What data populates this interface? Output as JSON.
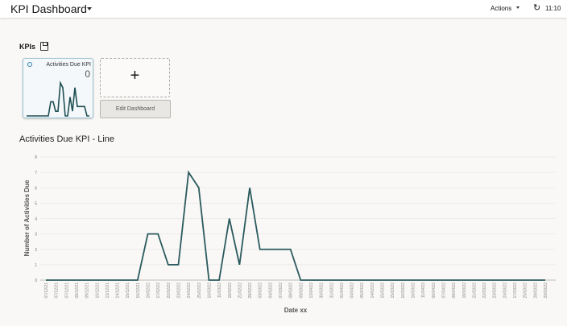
{
  "header": {
    "title": "KPI Dashboard",
    "actions_label": "Actions",
    "refresh_icon": "refresh-icon",
    "time": "11:10"
  },
  "kpis": {
    "heading": "KPIs",
    "save_icon": "save-icon",
    "card": {
      "title": "Activities Due KPI",
      "value": "0"
    },
    "add_label": "+",
    "edit_label": "Edit Dashboard"
  },
  "chart_title": "Activities Due KPI - Line",
  "chart_data": {
    "type": "line",
    "title": "Activities Due KPI - Line",
    "xlabel": "Date xx",
    "ylabel": "Number of Activities Due",
    "ylim": [
      0,
      8
    ],
    "yticks": [
      0,
      1,
      2,
      3,
      4,
      5,
      6,
      7,
      8
    ],
    "grid": true,
    "color": "#2b5a5e",
    "x": [
      "07/12/21",
      "07/12/21",
      "07/12/21",
      "08/12/21",
      "09/12/21",
      "10/12/21",
      "13/12/21",
      "14/12/21",
      "15/12/21",
      "16/12/21",
      "16/02/22",
      "17/02/22",
      "22/02/22",
      "23/02/22",
      "24/02/22",
      "25/02/22",
      "10/03/22",
      "11/03/22",
      "18/02/22",
      "21/02/22",
      "28/02/22",
      "03/03/22",
      "04/03/22",
      "07/03/22",
      "08/03/22",
      "09/03/22",
      "12/04/22",
      "30/03/22",
      "31/03/22",
      "01/04/22",
      "04/04/22",
      "05/04/22",
      "14/02/22",
      "15/03/22",
      "15/03/22",
      "16/03/22",
      "16/03/22",
      "11/04/22",
      "06/04/22",
      "07/04/22",
      "08/04/22",
      "18/03/22",
      "21/03/22",
      "22/03/22",
      "23/03/22",
      "24/03/22",
      "17/03/22",
      "25/03/22",
      "28/03/22",
      "29/03/22"
    ],
    "values": [
      0,
      0,
      0,
      0,
      0,
      0,
      0,
      0,
      0,
      0,
      3,
      3,
      1,
      1,
      7,
      6,
      0,
      0,
      4,
      1,
      6,
      2,
      2,
      2,
      2,
      0,
      0,
      0,
      0,
      0,
      0,
      0,
      0,
      0,
      0,
      0,
      0,
      0,
      0,
      0,
      0,
      0,
      0,
      0,
      0,
      0,
      0,
      0,
      0,
      0
    ]
  }
}
